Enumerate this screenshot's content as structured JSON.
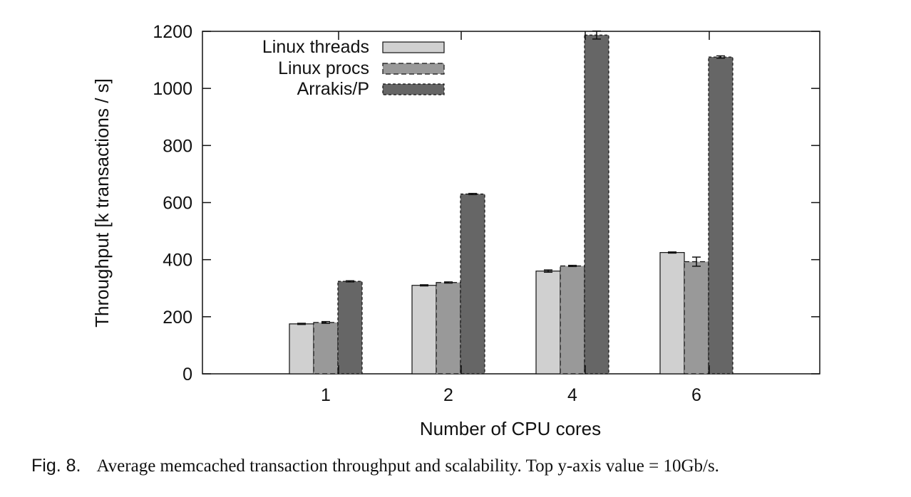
{
  "chart_data": {
    "type": "bar",
    "categories": [
      "1",
      "2",
      "4",
      "6"
    ],
    "series": [
      {
        "name": "Linux threads",
        "values": [
          175,
          310,
          360,
          425
        ],
        "errors": [
          2,
          2,
          4,
          2
        ],
        "color": "#d0d0d0"
      },
      {
        "name": "Linux procs",
        "values": [
          180,
          320,
          378,
          393
        ],
        "errors": [
          3,
          2,
          2,
          16
        ],
        "color": "#999999"
      },
      {
        "name": "Arrakis/P",
        "values": [
          324,
          630,
          1187,
          1110
        ],
        "errors": [
          2,
          2,
          14,
          4
        ],
        "color": "#666666"
      }
    ],
    "title": "",
    "xlabel": "Number of CPU cores",
    "ylabel": "Throughput [k transactions / s]",
    "ylim": [
      0,
      1200
    ],
    "yticks": [
      "0",
      "200",
      "400",
      "600",
      "800",
      "1000",
      "1200"
    ],
    "grid": false,
    "legend_position": "top-left"
  },
  "caption": {
    "label": "Fig. 8.",
    "text": "Average memcached transaction throughput and scalability. Top y-axis value = 10Gb/s."
  }
}
